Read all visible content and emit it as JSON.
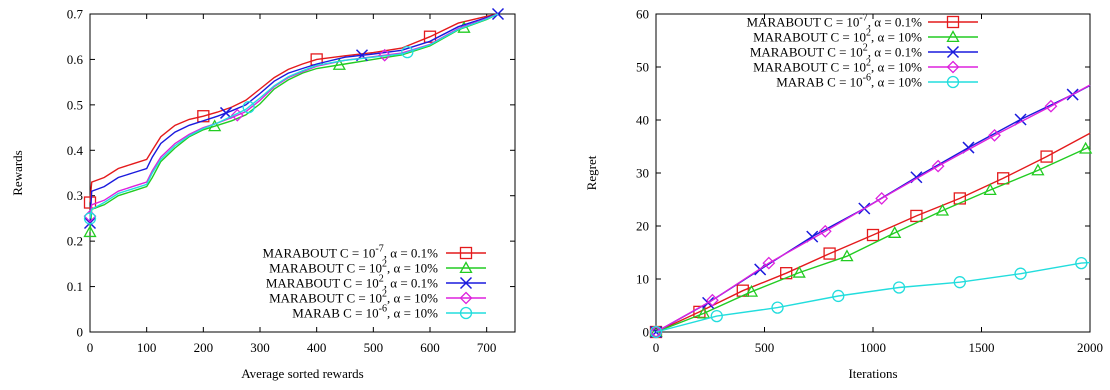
{
  "chart_data": [
    {
      "type": "line",
      "xlabel": "Average sorted rewards",
      "ylabel": "Rewards",
      "xlim": [
        0,
        750
      ],
      "ylim": [
        0,
        0.7
      ],
      "xticks": [
        0,
        100,
        200,
        300,
        400,
        500,
        600,
        700
      ],
      "yticks": [
        0,
        0.1,
        0.2,
        0.3,
        0.4,
        0.5,
        0.6,
        0.7
      ],
      "legend_position": "bottom-right",
      "series": [
        {
          "name": "MARABOUT C = 10<sup>-7</sup>, α = 0.1%",
          "color": "#e41a1c",
          "marker": "square",
          "x": [
            0,
            3,
            25,
            50,
            75,
            100,
            110,
            125,
            150,
            175,
            200,
            225,
            250,
            275,
            300,
            325,
            350,
            375,
            400,
            450,
            500,
            550,
            600,
            650,
            700,
            720
          ],
          "y": [
            0.285,
            0.33,
            0.34,
            0.36,
            0.37,
            0.38,
            0.4,
            0.43,
            0.455,
            0.468,
            0.475,
            0.484,
            0.495,
            0.51,
            0.535,
            0.56,
            0.578,
            0.59,
            0.6,
            0.608,
            0.615,
            0.625,
            0.65,
            0.68,
            0.695,
            0.7
          ],
          "markers_x": [
            0,
            200,
            400,
            600
          ]
        },
        {
          "name": "MARABOUT C = 10<sup>2</sup>, α = 10%",
          "color": "#22cc22",
          "marker": "triangle",
          "x": [
            0,
            3,
            25,
            50,
            75,
            100,
            110,
            125,
            150,
            175,
            200,
            225,
            250,
            275,
            300,
            325,
            350,
            375,
            400,
            450,
            500,
            550,
            600,
            650,
            700,
            720
          ],
          "y": [
            0.22,
            0.27,
            0.28,
            0.3,
            0.31,
            0.32,
            0.34,
            0.375,
            0.405,
            0.43,
            0.445,
            0.455,
            0.465,
            0.478,
            0.502,
            0.535,
            0.555,
            0.57,
            0.58,
            0.59,
            0.6,
            0.61,
            0.63,
            0.665,
            0.688,
            0.7
          ],
          "markers_x": [
            0,
            220,
            440,
            660
          ]
        },
        {
          "name": "MARABOUT C = 10<sup>2</sup>, α = 0.1%",
          "color": "#1a1add",
          "marker": "cross",
          "x": [
            0,
            3,
            25,
            50,
            75,
            100,
            110,
            125,
            150,
            175,
            200,
            225,
            250,
            275,
            300,
            325,
            350,
            375,
            400,
            450,
            500,
            550,
            600,
            650,
            700,
            720
          ],
          "y": [
            0.24,
            0.31,
            0.32,
            0.34,
            0.35,
            0.36,
            0.385,
            0.415,
            0.44,
            0.455,
            0.465,
            0.475,
            0.487,
            0.5,
            0.525,
            0.552,
            0.57,
            0.58,
            0.59,
            0.605,
            0.612,
            0.62,
            0.64,
            0.672,
            0.692,
            0.7
          ],
          "markers_x": [
            0,
            240,
            480,
            720
          ]
        },
        {
          "name": "MARABOUT C = 10<sup>2</sup>, α = 10%",
          "color": "#dd22dd",
          "marker": "diamond",
          "x": [
            0,
            3,
            25,
            50,
            75,
            100,
            110,
            125,
            150,
            175,
            200,
            225,
            250,
            275,
            300,
            325,
            350,
            375,
            400,
            450,
            500,
            550,
            600,
            650,
            700,
            720
          ],
          "y": [
            0.255,
            0.28,
            0.29,
            0.31,
            0.32,
            0.33,
            0.355,
            0.385,
            0.415,
            0.435,
            0.45,
            0.46,
            0.472,
            0.485,
            0.51,
            0.54,
            0.56,
            0.573,
            0.585,
            0.598,
            0.606,
            0.614,
            0.633,
            0.668,
            0.69,
            0.7
          ],
          "markers_x": [
            0,
            260,
            520
          ]
        },
        {
          "name": "MARAB C = 10<sup>-6</sup>, α = 10%",
          "color": "#22dddd",
          "marker": "circle",
          "x": [
            0,
            3,
            25,
            50,
            75,
            100,
            110,
            125,
            150,
            175,
            200,
            225,
            250,
            275,
            300,
            325,
            350,
            375,
            400,
            450,
            500,
            550,
            600,
            650,
            700,
            720
          ],
          "y": [
            0.25,
            0.27,
            0.285,
            0.305,
            0.315,
            0.325,
            0.35,
            0.38,
            0.41,
            0.432,
            0.448,
            0.46,
            0.475,
            0.49,
            0.515,
            0.542,
            0.562,
            0.575,
            0.587,
            0.598,
            0.605,
            0.612,
            0.632,
            0.666,
            0.689,
            0.7
          ],
          "markers_x": [
            0,
            280,
            560
          ]
        }
      ]
    },
    {
      "type": "line",
      "xlabel": "Iterations",
      "ylabel": "Regret",
      "xlim": [
        0,
        2000
      ],
      "ylim": [
        0,
        60
      ],
      "xticks": [
        0,
        500,
        1000,
        1500,
        2000
      ],
      "yticks": [
        0,
        10,
        20,
        30,
        40,
        50,
        60
      ],
      "legend_position": "top-left",
      "series": [
        {
          "name": "MARABOUT C = 10<sup>-7</sup>, α = 0.1%",
          "color": "#e41a1c",
          "marker": "square",
          "x": [
            0,
            200,
            400,
            600,
            800,
            1000,
            1200,
            1400,
            1600,
            1800,
            2000
          ],
          "y": [
            0,
            3.8,
            7.8,
            11.1,
            14.8,
            18.3,
            21.9,
            25.2,
            29.0,
            33.1,
            37.5
          ],
          "markers_x": [
            0,
            200,
            400,
            600,
            800,
            1000,
            1200,
            1400,
            1600,
            1800
          ]
        },
        {
          "name": "MARABOUT C = 10<sup>2</sup>, α = 10%",
          "color": "#22cc22",
          "marker": "triangle",
          "x": [
            0,
            220,
            440,
            660,
            880,
            1100,
            1320,
            1540,
            1760,
            1980,
            2000
          ],
          "y": [
            0,
            3.5,
            7.6,
            11.2,
            14.3,
            18.7,
            22.9,
            26.8,
            30.5,
            34.6,
            35.0
          ],
          "markers_x": [
            0,
            220,
            440,
            660,
            880,
            1100,
            1320,
            1540,
            1760,
            1980
          ]
        },
        {
          "name": "MARABOUT C = 10<sup>2</sup>, α = 0.1%",
          "color": "#1a1add",
          "marker": "cross",
          "x": [
            0,
            240,
            480,
            720,
            960,
            1200,
            1440,
            1680,
            1920,
            2000
          ],
          "y": [
            0,
            5.5,
            11.8,
            18.0,
            23.3,
            29.2,
            34.8,
            40.1,
            44.8,
            46.5
          ],
          "markers_x": [
            0,
            240,
            480,
            720,
            960,
            1200,
            1440,
            1680,
            1920
          ]
        },
        {
          "name": "MARABOUT C = 10<sup>2</sup>, α = 10%",
          "color": "#dd22dd",
          "marker": "diamond",
          "x": [
            0,
            260,
            520,
            780,
            1040,
            1300,
            1560,
            1820,
            2000
          ],
          "y": [
            0,
            6.0,
            13.0,
            19.0,
            25.2,
            31.3,
            37.1,
            42.6,
            46.6
          ],
          "markers_x": [
            0,
            260,
            520,
            780,
            1040,
            1300,
            1560,
            1820
          ]
        },
        {
          "name": "MARAB C = 10<sup>-6</sup>, α = 10%",
          "color": "#22dddd",
          "marker": "circle",
          "x": [
            0,
            280,
            560,
            840,
            1120,
            1400,
            1680,
            1960,
            2000
          ],
          "y": [
            0,
            3.0,
            4.6,
            6.8,
            8.4,
            9.4,
            11.0,
            13.0,
            13.1
          ],
          "markers_x": [
            0,
            280,
            560,
            840,
            1120,
            1400,
            1680,
            1960
          ]
        }
      ]
    }
  ]
}
